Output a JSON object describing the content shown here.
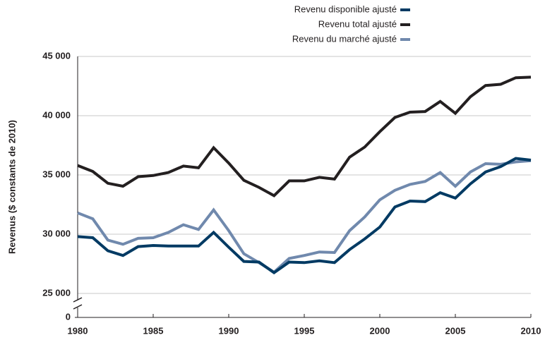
{
  "chart_data": {
    "type": "line",
    "y_label": "Revenus ($ constants de 2010)",
    "x": [
      1980,
      1981,
      1982,
      1983,
      1984,
      1985,
      1986,
      1987,
      1988,
      1989,
      1990,
      1991,
      1992,
      1993,
      1994,
      1995,
      1996,
      1997,
      1998,
      1999,
      2000,
      2001,
      2002,
      2003,
      2004,
      2005,
      2006,
      2007,
      2008,
      2009,
      2010
    ],
    "series": [
      {
        "name": "Revenu disponible ajusté",
        "color": "#003a63",
        "values": [
          29800,
          29700,
          28600,
          28200,
          28950,
          29050,
          29000,
          29000,
          29000,
          30150,
          28900,
          27700,
          27650,
          26750,
          27650,
          27600,
          27750,
          27600,
          28700,
          29600,
          30600,
          32300,
          32800,
          32750,
          33500,
          33050,
          34250,
          35250,
          35700,
          36400,
          36250
        ]
      },
      {
        "name": "Revenu total ajusté",
        "color": "#231f20",
        "values": [
          35800,
          35300,
          34300,
          34050,
          34850,
          34950,
          35200,
          35750,
          35600,
          37300,
          36000,
          34550,
          33950,
          33250,
          34500,
          34500,
          34800,
          34650,
          36500,
          37350,
          38650,
          39850,
          40300,
          40350,
          41200,
          40200,
          41600,
          42550,
          42650,
          43200,
          43250
        ]
      },
      {
        "name": "Revenu du marché ajusté",
        "color": "#7089ad",
        "values": [
          31800,
          31300,
          29500,
          29150,
          29650,
          29700,
          30150,
          30800,
          30400,
          32050,
          30300,
          28350,
          27600,
          26800,
          27950,
          28200,
          28500,
          28450,
          30300,
          31450,
          32900,
          33700,
          34200,
          34450,
          35200,
          34050,
          35250,
          35950,
          35900,
          36100,
          36200
        ]
      }
    ],
    "xlim": [
      1980,
      2010
    ],
    "xticks": [
      1980,
      1985,
      1990,
      1995,
      2000,
      2005,
      2010
    ],
    "ylim": [
      25000,
      45000
    ],
    "yticks": [
      0,
      {
        "value": 25000,
        "label": "25 000"
      },
      {
        "value": 30000,
        "label": "30 000"
      },
      {
        "value": 35000,
        "label": "35 000"
      },
      {
        "value": 40000,
        "label": "40 000"
      },
      {
        "value": 45000,
        "label": "45 000"
      }
    ],
    "axis_break": true,
    "grid": true,
    "legend": "top"
  }
}
